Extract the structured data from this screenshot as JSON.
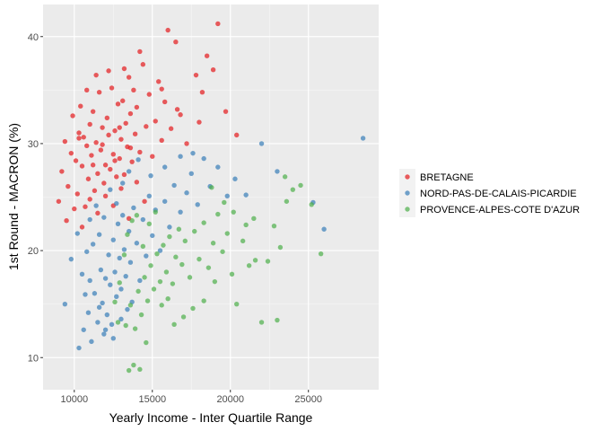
{
  "chart_data": {
    "type": "scatter",
    "title": "",
    "xlabel": "Yearly Income - Inter Quartile Range",
    "ylabel": "1st Round - MACRON (%)",
    "xlim": [
      8000,
      29500
    ],
    "ylim": [
      7,
      43
    ],
    "xticks": [
      10000,
      15000,
      20000,
      25000
    ],
    "xtick_labels": [
      "10000",
      "15000",
      "20000",
      "25000"
    ],
    "yticks": [
      10,
      20,
      30,
      40
    ],
    "ytick_labels": [
      "10",
      "20",
      "30",
      "40"
    ],
    "grid": true,
    "legend_position": "right",
    "series": [
      {
        "name": "BRETAGNE",
        "color": "#e41a1c",
        "points": [
          [
            9000,
            24.6
          ],
          [
            9200,
            27.4
          ],
          [
            9400,
            30.2
          ],
          [
            9600,
            26.0
          ],
          [
            9800,
            29.1
          ],
          [
            9900,
            32.6
          ],
          [
            10100,
            28.4
          ],
          [
            10200,
            25.3
          ],
          [
            10300,
            31.0
          ],
          [
            10400,
            33.5
          ],
          [
            10500,
            27.9
          ],
          [
            10600,
            30.6
          ],
          [
            10700,
            24.1
          ],
          [
            10800,
            29.8
          ],
          [
            10900,
            26.7
          ],
          [
            11000,
            31.8
          ],
          [
            11100,
            28.9
          ],
          [
            11200,
            33.0
          ],
          [
            11300,
            25.6
          ],
          [
            11400,
            30.1
          ],
          [
            11500,
            27.2
          ],
          [
            11600,
            34.8
          ],
          [
            11700,
            29.4
          ],
          [
            11800,
            31.5
          ],
          [
            11900,
            26.3
          ],
          [
            12000,
            28.0
          ],
          [
            12100,
            32.4
          ],
          [
            12200,
            30.8
          ],
          [
            12300,
            27.6
          ],
          [
            12400,
            35.2
          ],
          [
            12500,
            29.0
          ],
          [
            12600,
            31.2
          ],
          [
            12700,
            26.9
          ],
          [
            12800,
            33.7
          ],
          [
            12900,
            28.6
          ],
          [
            13000,
            30.4
          ],
          [
            13100,
            34.0
          ],
          [
            13200,
            27.1
          ],
          [
            13300,
            31.9
          ],
          [
            13400,
            29.7
          ],
          [
            13500,
            36.2
          ],
          [
            13600,
            32.8
          ],
          [
            13700,
            28.3
          ],
          [
            13800,
            35.0
          ],
          [
            13900,
            30.9
          ],
          [
            14000,
            33.4
          ],
          [
            14200,
            29.2
          ],
          [
            14400,
            37.4
          ],
          [
            14600,
            31.6
          ],
          [
            14800,
            34.6
          ],
          [
            15000,
            28.8
          ],
          [
            15200,
            32.1
          ],
          [
            15400,
            35.8
          ],
          [
            15600,
            30.3
          ],
          [
            15800,
            33.9
          ],
          [
            16000,
            40.6
          ],
          [
            16200,
            31.4
          ],
          [
            16500,
            39.5
          ],
          [
            16800,
            32.7
          ],
          [
            17200,
            30.0
          ],
          [
            17800,
            36.4
          ],
          [
            18200,
            34.8
          ],
          [
            18500,
            38.2
          ],
          [
            18900,
            36.9
          ],
          [
            19200,
            41.2
          ],
          [
            19700,
            33.0
          ],
          [
            20400,
            30.8
          ],
          [
            9500,
            22.8
          ],
          [
            10000,
            23.9
          ],
          [
            10500,
            22.2
          ],
          [
            11000,
            24.8
          ],
          [
            11500,
            23.5
          ],
          [
            12000,
            25.1
          ],
          [
            12500,
            24.2
          ],
          [
            13000,
            25.8
          ],
          [
            13500,
            23.0
          ],
          [
            14000,
            26.4
          ],
          [
            14500,
            24.6
          ],
          [
            10800,
            35.0
          ],
          [
            11400,
            36.4
          ],
          [
            12200,
            36.8
          ],
          [
            13200,
            37.0
          ],
          [
            14200,
            38.6
          ],
          [
            15600,
            35.1
          ],
          [
            16600,
            33.2
          ],
          [
            18000,
            32.0
          ],
          [
            11200,
            28.0
          ],
          [
            11800,
            29.9
          ],
          [
            12600,
            28.4
          ],
          [
            10300,
            30.5
          ],
          [
            12900,
            31.5
          ],
          [
            13600,
            29.6
          ]
        ]
      },
      {
        "name": "NORD-PAS-DE-CALAIS-PICARDIE",
        "color": "#377eb8",
        "points": [
          [
            10300,
            10.9
          ],
          [
            10600,
            12.6
          ],
          [
            10900,
            14.2
          ],
          [
            11100,
            11.5
          ],
          [
            11300,
            16.0
          ],
          [
            11500,
            13.3
          ],
          [
            11700,
            18.2
          ],
          [
            11800,
            15.1
          ],
          [
            11900,
            12.2
          ],
          [
            12000,
            17.4
          ],
          [
            12100,
            14.0
          ],
          [
            12200,
            19.6
          ],
          [
            12300,
            16.8
          ],
          [
            12400,
            13.1
          ],
          [
            12500,
            21.0
          ],
          [
            12600,
            18.0
          ],
          [
            12700,
            15.7
          ],
          [
            12800,
            22.5
          ],
          [
            12900,
            19.3
          ],
          [
            13000,
            16.4
          ],
          [
            13100,
            23.3
          ],
          [
            13200,
            20.1
          ],
          [
            13300,
            17.6
          ],
          [
            13400,
            14.5
          ],
          [
            13500,
            21.8
          ],
          [
            13600,
            18.9
          ],
          [
            13800,
            24.0
          ],
          [
            14000,
            20.7
          ],
          [
            14200,
            17.2
          ],
          [
            14400,
            22.9
          ],
          [
            14600,
            19.5
          ],
          [
            14800,
            25.1
          ],
          [
            15000,
            21.4
          ],
          [
            15200,
            23.8
          ],
          [
            15500,
            20.0
          ],
          [
            15800,
            24.6
          ],
          [
            16100,
            22.2
          ],
          [
            16400,
            26.1
          ],
          [
            16800,
            23.6
          ],
          [
            17200,
            25.4
          ],
          [
            17500,
            27.2
          ],
          [
            17900,
            24.3
          ],
          [
            18300,
            28.6
          ],
          [
            18700,
            26.0
          ],
          [
            19200,
            27.8
          ],
          [
            19800,
            25.1
          ],
          [
            20300,
            26.7
          ],
          [
            21000,
            25.2
          ],
          [
            22000,
            30.0
          ],
          [
            23000,
            27.4
          ],
          [
            25300,
            24.5
          ],
          [
            26000,
            22.0
          ],
          [
            28500,
            30.5
          ],
          [
            9400,
            15.0
          ],
          [
            9800,
            19.2
          ],
          [
            10200,
            21.6
          ],
          [
            10500,
            17.8
          ],
          [
            10800,
            19.9
          ],
          [
            11000,
            22.9
          ],
          [
            11200,
            20.6
          ],
          [
            11400,
            24.2
          ],
          [
            11600,
            21.5
          ],
          [
            11900,
            23.1
          ],
          [
            12300,
            25.7
          ],
          [
            12700,
            24.4
          ],
          [
            13100,
            26.3
          ],
          [
            13500,
            27.4
          ],
          [
            14100,
            28.5
          ],
          [
            14900,
            27.0
          ],
          [
            15800,
            27.8
          ],
          [
            16800,
            28.8
          ],
          [
            17600,
            29.1
          ],
          [
            11000,
            17.2
          ],
          [
            11600,
            14.7
          ],
          [
            12500,
            11.8
          ],
          [
            13000,
            13.6
          ],
          [
            12000,
            12.6
          ],
          [
            10700,
            15.9
          ],
          [
            13700,
            15.2
          ]
        ]
      },
      {
        "name": "PROVENCE-ALPES-COTE D'AZUR",
        "color": "#4daf4a",
        "points": [
          [
            13500,
            8.8
          ],
          [
            13800,
            9.3
          ],
          [
            14200,
            8.9
          ],
          [
            14600,
            11.4
          ],
          [
            13300,
            13.0
          ],
          [
            13600,
            14.9
          ],
          [
            13900,
            12.7
          ],
          [
            14100,
            16.2
          ],
          [
            14300,
            14.0
          ],
          [
            14500,
            17.5
          ],
          [
            14700,
            15.3
          ],
          [
            14900,
            18.6
          ],
          [
            15100,
            16.4
          ],
          [
            15300,
            19.7
          ],
          [
            15500,
            17.1
          ],
          [
            15700,
            20.5
          ],
          [
            15900,
            18.0
          ],
          [
            16100,
            21.3
          ],
          [
            16300,
            16.9
          ],
          [
            16500,
            19.4
          ],
          [
            16700,
            22.0
          ],
          [
            16900,
            18.7
          ],
          [
            17100,
            20.9
          ],
          [
            17400,
            17.5
          ],
          [
            17700,
            21.8
          ],
          [
            18000,
            19.2
          ],
          [
            18300,
            22.6
          ],
          [
            18600,
            18.4
          ],
          [
            18900,
            20.7
          ],
          [
            19200,
            23.4
          ],
          [
            19500,
            19.9
          ],
          [
            19800,
            21.6
          ],
          [
            20100,
            17.8
          ],
          [
            20400,
            15.0
          ],
          [
            20800,
            20.9
          ],
          [
            21200,
            18.6
          ],
          [
            21600,
            19.1
          ],
          [
            22000,
            13.3
          ],
          [
            22400,
            19.0
          ],
          [
            22800,
            22.3
          ],
          [
            23000,
            13.5
          ],
          [
            23200,
            20.3
          ],
          [
            23600,
            24.6
          ],
          [
            24000,
            25.7
          ],
          [
            24500,
            26.1
          ],
          [
            25200,
            24.3
          ],
          [
            25800,
            19.7
          ],
          [
            21000,
            22.4
          ],
          [
            21500,
            23.0
          ],
          [
            20200,
            23.6
          ],
          [
            19600,
            24.5
          ],
          [
            18800,
            25.9
          ],
          [
            23500,
            26.9
          ],
          [
            12600,
            15.2
          ],
          [
            12900,
            17.0
          ],
          [
            13200,
            19.6
          ],
          [
            13400,
            21.5
          ],
          [
            13700,
            22.8
          ],
          [
            14000,
            23.3
          ],
          [
            14400,
            20.4
          ],
          [
            14800,
            22.5
          ],
          [
            15200,
            23.6
          ],
          [
            12800,
            13.3
          ],
          [
            15600,
            14.9
          ],
          [
            16400,
            13.1
          ],
          [
            17000,
            13.8
          ],
          [
            16000,
            15.5
          ],
          [
            17600,
            14.6
          ],
          [
            18300,
            15.3
          ],
          [
            19000,
            17.1
          ]
        ]
      }
    ]
  }
}
